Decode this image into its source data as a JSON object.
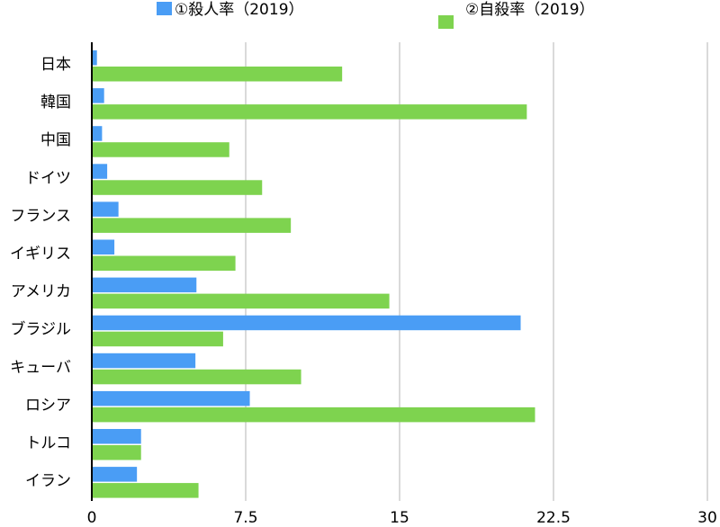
{
  "chart_data": {
    "type": "bar",
    "orientation": "horizontal",
    "categories": [
      "日本",
      "韓国",
      "中国",
      "ドイツ",
      "フランス",
      "イギリス",
      "アメリカ",
      "ブラジル",
      "キューバ",
      "ロシア",
      "トルコ",
      "イラン"
    ],
    "series": [
      {
        "name": "①殺人率（2019）",
        "color": "#4a9df5",
        "values": [
          0.25,
          0.6,
          0.5,
          0.75,
          1.3,
          1.1,
          5.1,
          20.9,
          5.05,
          7.7,
          2.4,
          2.2
        ]
      },
      {
        "name": "②自殺率（2019）",
        "color": "#7ed34f",
        "values": [
          12.2,
          21.2,
          6.7,
          8.3,
          9.7,
          7.0,
          14.5,
          6.4,
          10.2,
          21.6,
          2.4,
          5.2
        ]
      }
    ],
    "xlim": [
      0,
      30
    ],
    "ticks": [
      "0",
      "7.5",
      "15",
      "22.5",
      "30"
    ],
    "grid": true,
    "legend_position": "top"
  }
}
